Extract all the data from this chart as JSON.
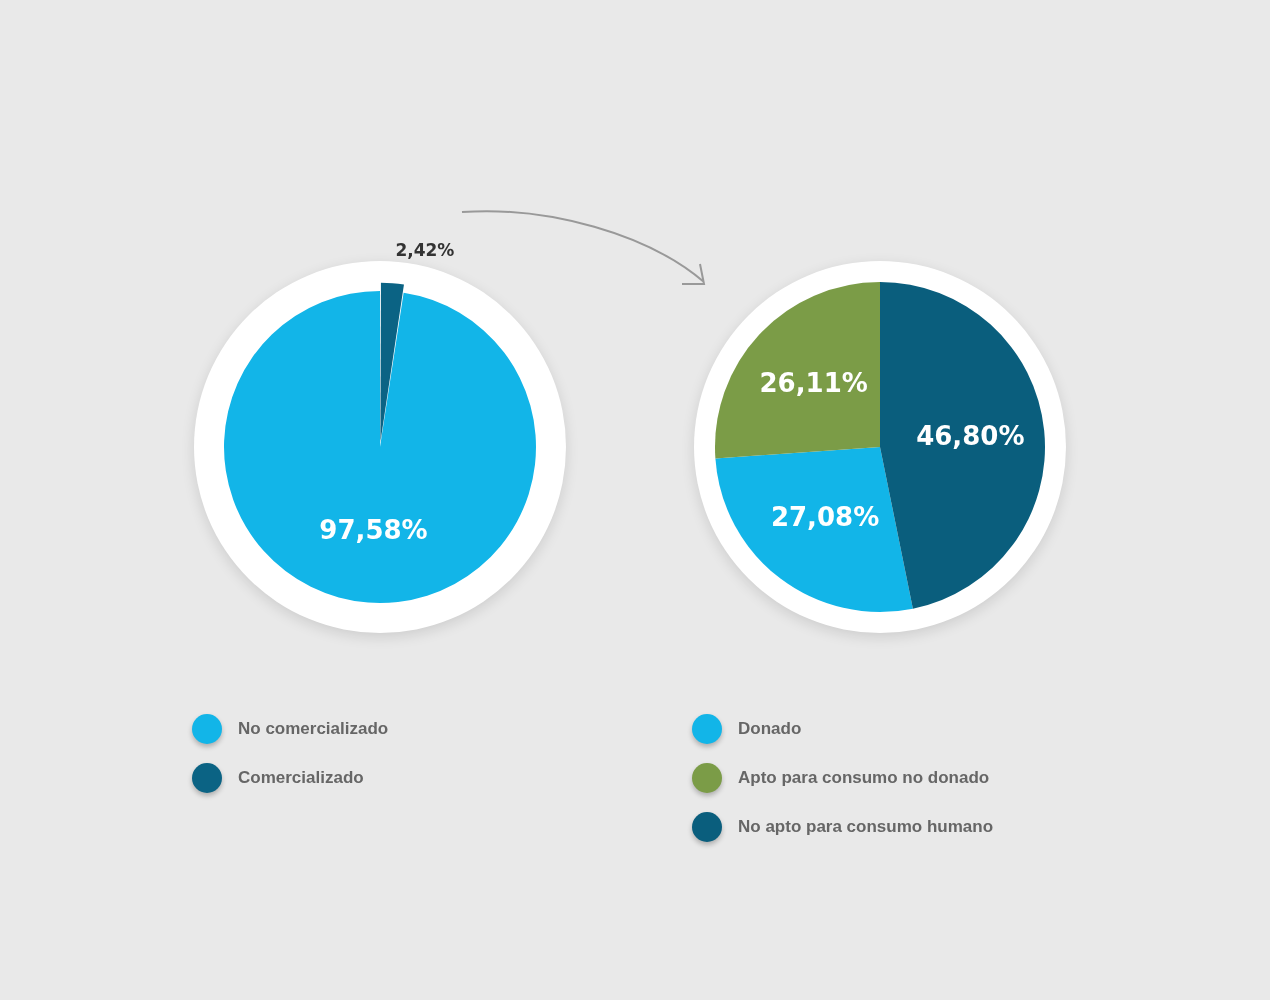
{
  "chart_data": [
    {
      "type": "pie",
      "categories": [
        "No comercializado",
        "Comercializado"
      ],
      "values": [
        97.58,
        2.42
      ],
      "colors": [
        "#12b5e8",
        "#0b6384"
      ],
      "value_labels": [
        "97,58%",
        "2,42%"
      ],
      "legend": "bottom"
    },
    {
      "type": "pie",
      "categories": [
        "Donado",
        "Apto para consumo no donado",
        "No apto para consumo humano"
      ],
      "values": [
        27.08,
        26.11,
        46.8
      ],
      "colors": [
        "#12b5e8",
        "#7b9c47",
        "#0a5e7d"
      ],
      "value_labels": [
        "27,08%",
        "26,11%",
        "46,80%"
      ],
      "legend": "bottom"
    }
  ]
}
